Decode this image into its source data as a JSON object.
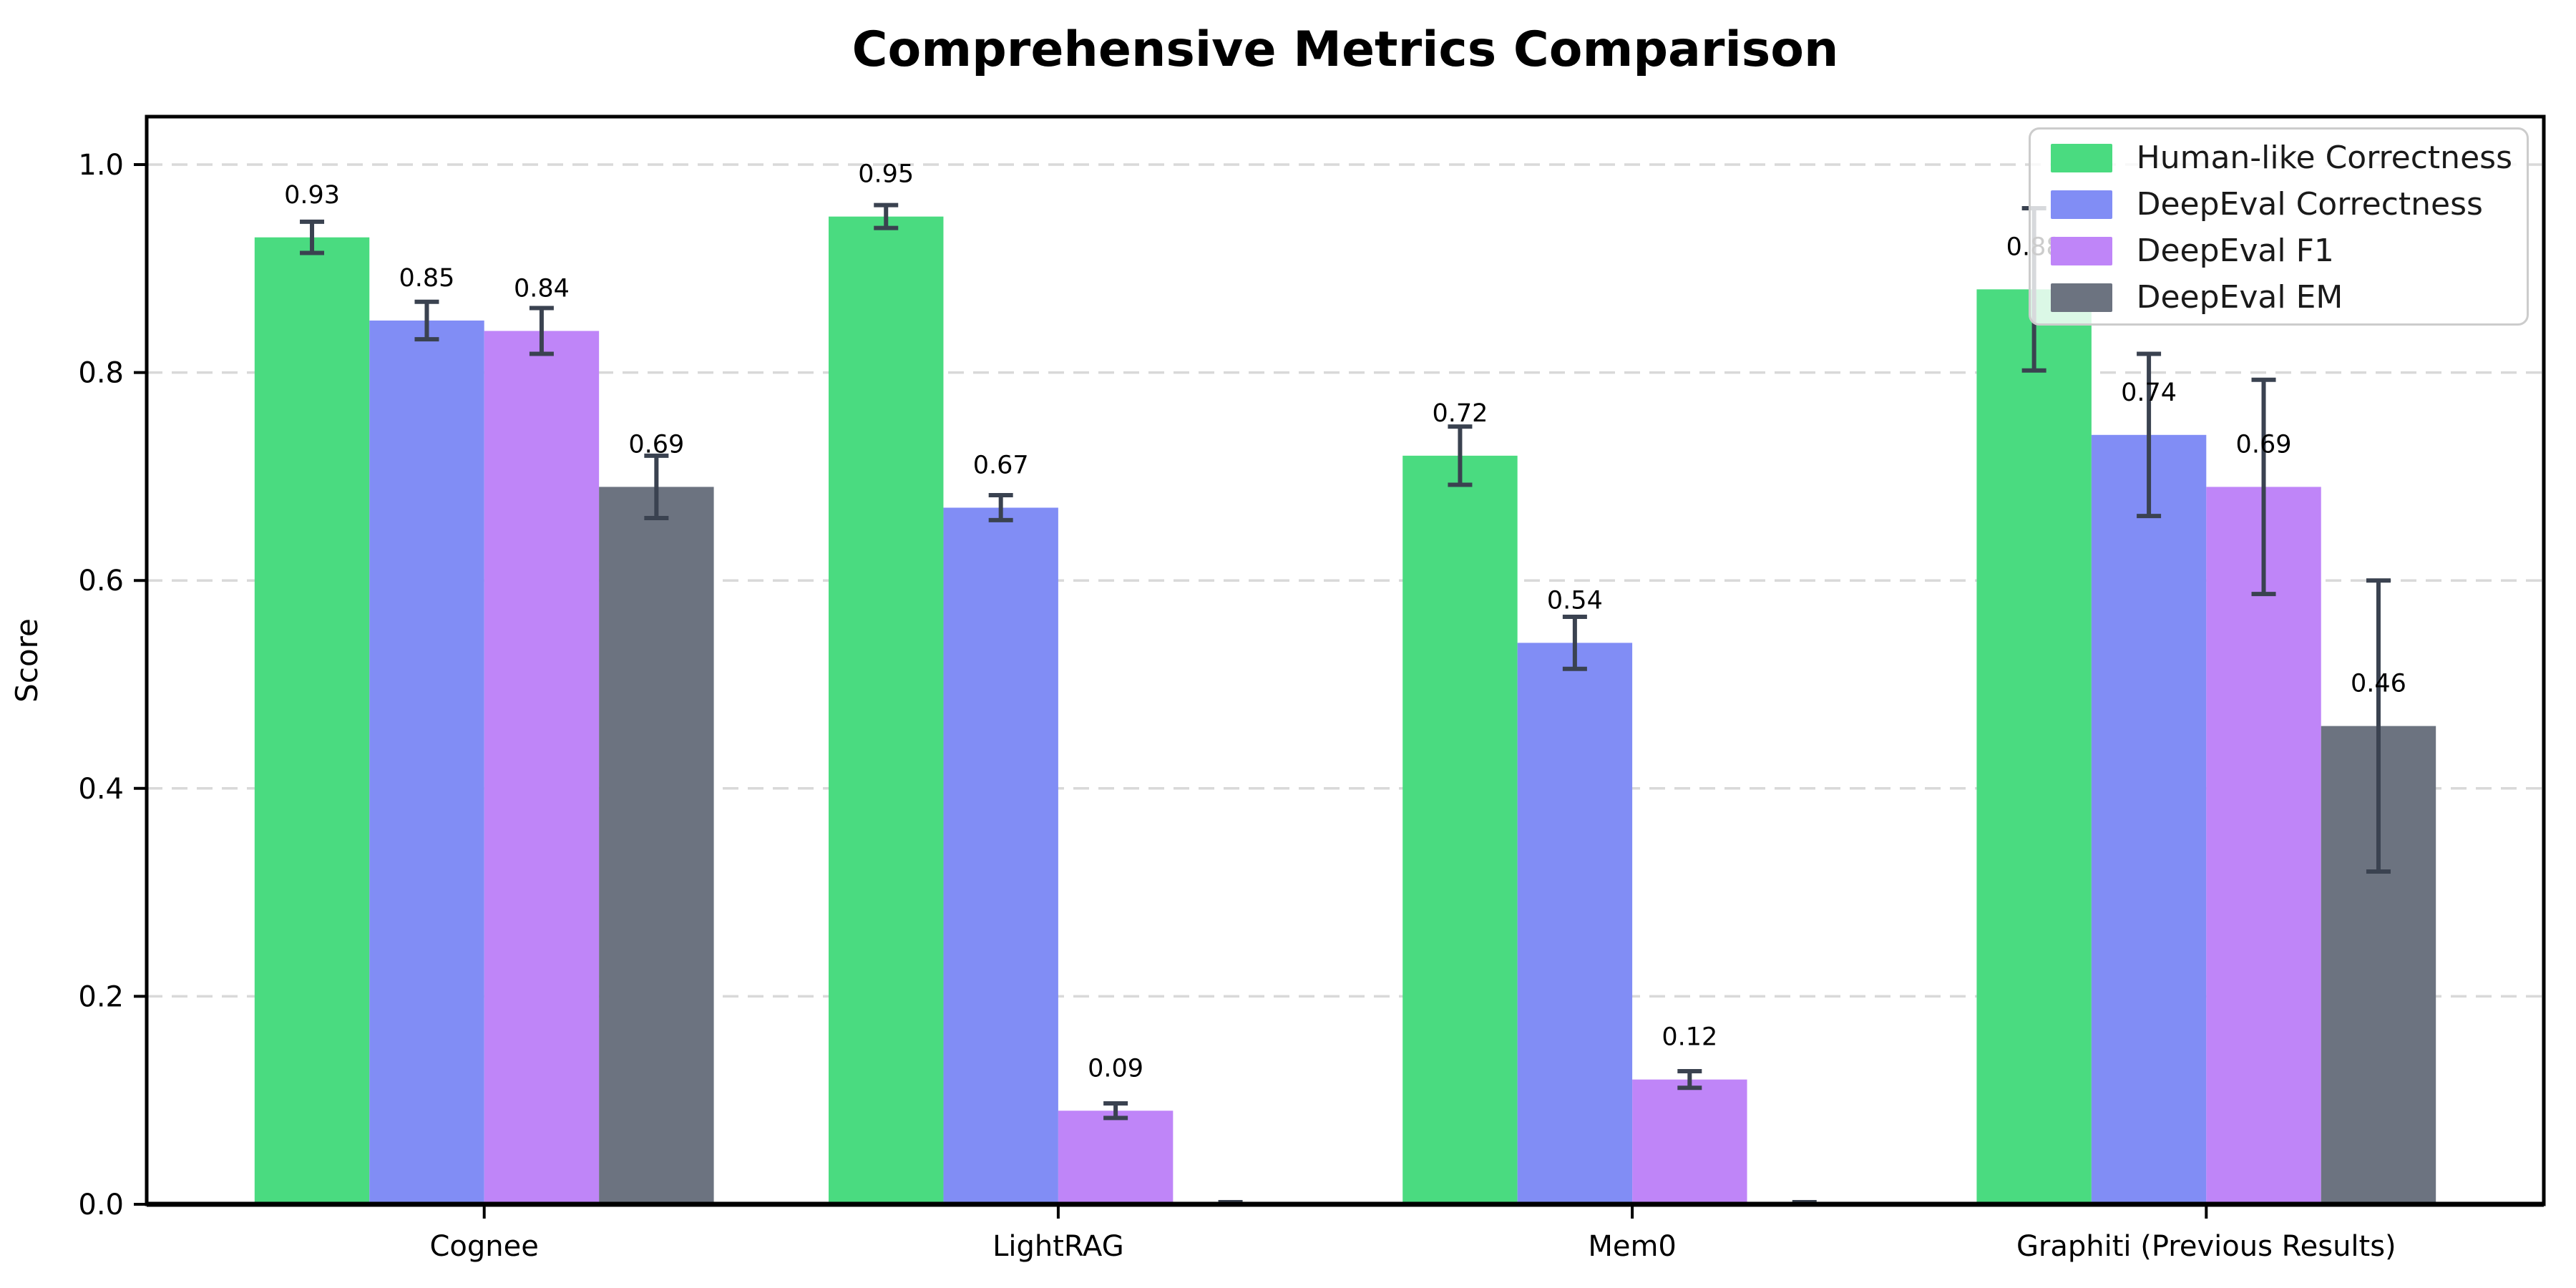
{
  "chart_data": {
    "type": "bar",
    "title": "Comprehensive Metrics Comparison",
    "ylabel": "Score",
    "xlabel": "",
    "categories": [
      "Cognee",
      "LightRAG",
      "Mem0",
      "Graphiti (Previous Results)"
    ],
    "series": [
      {
        "name": "Human-like Correctness",
        "color": "#4adb80",
        "values": [
          0.93,
          0.95,
          0.72,
          0.88
        ],
        "errors": [
          0.015,
          0.011,
          0.028,
          0.078
        ]
      },
      {
        "name": "DeepEval Correctness",
        "color": "#818df5",
        "values": [
          0.85,
          0.67,
          0.54,
          0.74
        ],
        "errors": [
          0.018,
          0.012,
          0.025,
          0.078
        ]
      },
      {
        "name": "DeepEval F1",
        "color": "#bf85f8",
        "values": [
          0.84,
          0.09,
          0.12,
          0.69
        ],
        "errors": [
          0.022,
          0.007,
          0.008,
          0.103
        ]
      },
      {
        "name": "DeepEval EM",
        "color": "#6c7380",
        "values": [
          0.69,
          0.0,
          0.0,
          0.46
        ],
        "errors": [
          0.03,
          0.0,
          0.0,
          0.14
        ]
      }
    ],
    "bar_value_labels": [
      "0.93",
      "0.85",
      "0.84",
      "0.69",
      "0.95",
      "0.67",
      "0.09",
      "0.72",
      "0.54",
      "0.12",
      "0.88",
      "0.74",
      "0.69",
      "0.46"
    ],
    "yticks": [
      0.0,
      0.2,
      0.4,
      0.6,
      0.8,
      1.0
    ],
    "ylim": [
      0,
      1.045
    ],
    "grid": "horizontal-dashed",
    "legend_position": "upper-right",
    "error_bar_color": "#3a4250"
  }
}
